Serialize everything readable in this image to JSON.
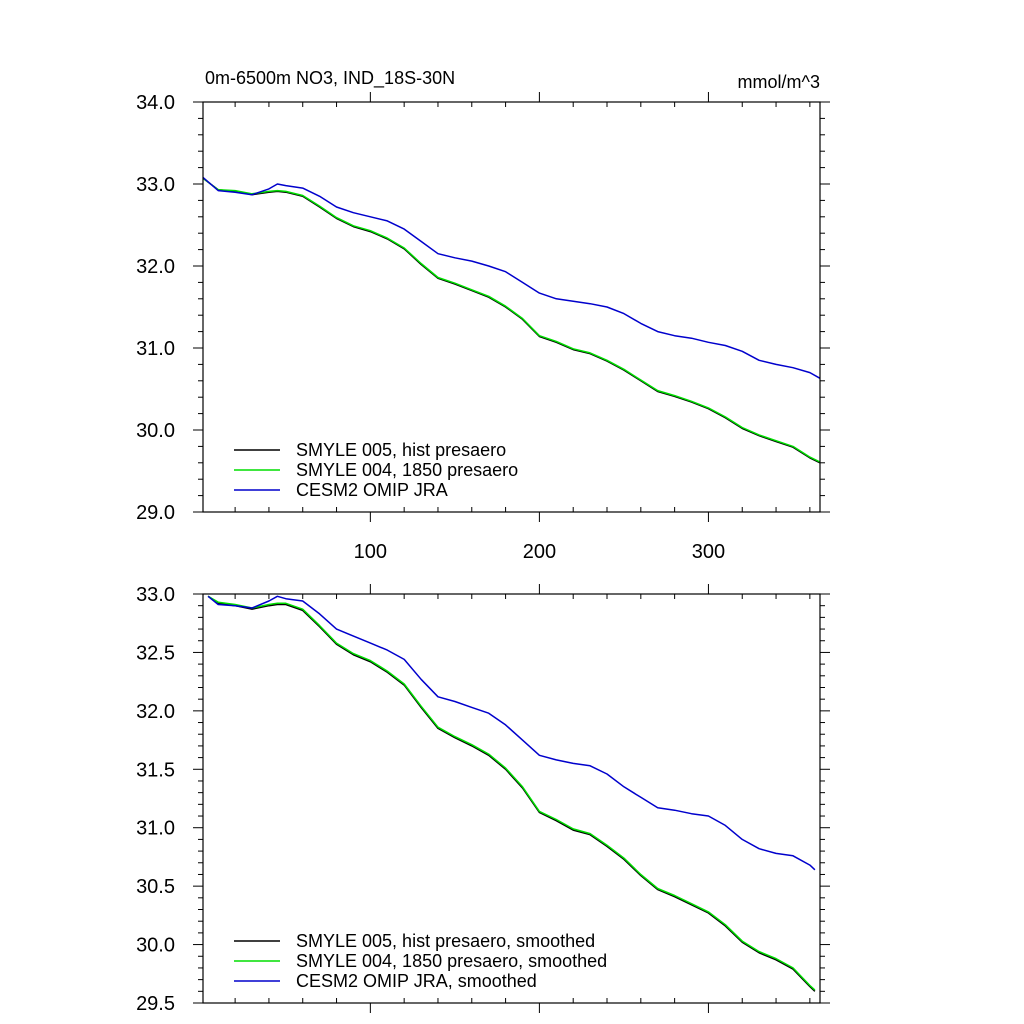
{
  "chart_data": [
    {
      "type": "line",
      "title": "0m-6500m NO3, IND_18S-30N",
      "units": "mmol/m^3",
      "xlim": [
        1,
        366
      ],
      "ylim": [
        29.0,
        34.0
      ],
      "xticks": [
        100,
        200,
        300
      ],
      "yticks": [
        29.0,
        30.0,
        31.0,
        32.0,
        33.0,
        34.0
      ],
      "ytick_labels": [
        "29.0",
        "30.0",
        "31.0",
        "32.0",
        "33.0",
        "34.0"
      ],
      "xtick_labels": [
        "100",
        "200",
        "300"
      ],
      "legend_position": "bottom-left",
      "series": [
        {
          "name": "SMYLE 005, hist presaero",
          "color": "#000000",
          "x": [
            1,
            10,
            20,
            30,
            40,
            45,
            50,
            60,
            70,
            80,
            90,
            100,
            110,
            120,
            130,
            140,
            150,
            160,
            170,
            180,
            190,
            200,
            210,
            220,
            230,
            240,
            250,
            260,
            270,
            280,
            290,
            300,
            310,
            320,
            330,
            340,
            350,
            360,
            366
          ],
          "y": [
            33.07,
            32.93,
            32.91,
            32.87,
            32.9,
            32.91,
            32.9,
            32.85,
            32.72,
            32.58,
            32.48,
            32.42,
            32.33,
            32.21,
            32.02,
            31.85,
            31.78,
            31.7,
            31.62,
            31.5,
            31.35,
            31.14,
            31.07,
            30.98,
            30.93,
            30.84,
            30.73,
            30.6,
            30.47,
            30.41,
            30.34,
            30.26,
            30.15,
            30.02,
            29.93,
            29.86,
            29.79,
            29.66,
            29.6
          ]
        },
        {
          "name": "SMYLE 004, 1850 presaero",
          "color": "#00dd00",
          "x": [
            1,
            10,
            20,
            30,
            40,
            45,
            50,
            60,
            70,
            80,
            90,
            100,
            110,
            120,
            130,
            140,
            150,
            160,
            170,
            180,
            190,
            200,
            210,
            220,
            230,
            240,
            250,
            260,
            270,
            280,
            290,
            300,
            310,
            320,
            330,
            340,
            350,
            360,
            366
          ],
          "y": [
            33.07,
            32.93,
            32.92,
            32.88,
            32.91,
            32.92,
            32.91,
            32.86,
            32.73,
            32.59,
            32.49,
            32.43,
            32.34,
            32.22,
            32.03,
            31.86,
            31.79,
            31.71,
            31.63,
            31.51,
            31.36,
            31.15,
            31.08,
            30.99,
            30.94,
            30.85,
            30.74,
            30.61,
            30.48,
            30.42,
            30.35,
            30.27,
            30.16,
            30.03,
            29.94,
            29.87,
            29.8,
            29.67,
            29.61
          ]
        },
        {
          "name": "CESM2 OMIP JRA",
          "color": "#0000cc",
          "x": [
            1,
            10,
            20,
            30,
            40,
            45,
            50,
            60,
            70,
            80,
            90,
            100,
            110,
            120,
            130,
            140,
            150,
            160,
            170,
            180,
            190,
            200,
            210,
            220,
            230,
            240,
            250,
            260,
            270,
            280,
            290,
            300,
            310,
            320,
            330,
            340,
            350,
            360,
            366
          ],
          "y": [
            33.08,
            32.92,
            32.9,
            32.87,
            32.94,
            33.0,
            32.98,
            32.95,
            32.85,
            32.72,
            32.65,
            32.6,
            32.55,
            32.45,
            32.3,
            32.15,
            32.1,
            32.06,
            32.0,
            31.93,
            31.8,
            31.67,
            31.6,
            31.57,
            31.54,
            31.5,
            31.42,
            31.3,
            31.2,
            31.15,
            31.12,
            31.07,
            31.03,
            30.96,
            30.85,
            30.8,
            30.76,
            30.7,
            30.63
          ]
        }
      ]
    },
    {
      "type": "line",
      "title": "",
      "xlim": [
        1,
        366
      ],
      "ylim": [
        29.5,
        33.0
      ],
      "xticks": [
        100,
        200,
        300
      ],
      "yticks": [
        29.5,
        30.0,
        30.5,
        31.0,
        31.5,
        32.0,
        32.5,
        33.0
      ],
      "ytick_labels": [
        "29.5",
        "30.0",
        "30.5",
        "31.0",
        "31.5",
        "32.0",
        "32.5",
        "33.0"
      ],
      "legend_position": "bottom-left",
      "series": [
        {
          "name": "SMYLE 005, hist presaero, smoothed",
          "color": "#000000",
          "x": [
            4,
            10,
            20,
            30,
            40,
            45,
            50,
            60,
            70,
            80,
            90,
            100,
            110,
            120,
            130,
            140,
            150,
            160,
            170,
            180,
            190,
            200,
            210,
            220,
            230,
            240,
            250,
            260,
            270,
            280,
            290,
            300,
            310,
            320,
            330,
            340,
            350,
            360,
            363
          ],
          "y": [
            32.98,
            32.92,
            32.9,
            32.87,
            32.9,
            32.91,
            32.91,
            32.86,
            32.72,
            32.57,
            32.48,
            32.42,
            32.33,
            32.22,
            32.03,
            31.85,
            31.77,
            31.7,
            31.62,
            31.5,
            31.34,
            31.13,
            31.06,
            30.98,
            30.94,
            30.84,
            30.73,
            30.59,
            30.47,
            30.41,
            30.34,
            30.27,
            30.16,
            30.02,
            29.93,
            29.87,
            29.79,
            29.64,
            29.6
          ]
        },
        {
          "name": "SMYLE 004, 1850 presaero, smoothed",
          "color": "#00dd00",
          "x": [
            4,
            10,
            20,
            30,
            40,
            45,
            50,
            60,
            70,
            80,
            90,
            100,
            110,
            120,
            130,
            140,
            150,
            160,
            170,
            180,
            190,
            200,
            210,
            220,
            230,
            240,
            250,
            260,
            270,
            280,
            290,
            300,
            310,
            320,
            330,
            340,
            350,
            360,
            363
          ],
          "y": [
            32.98,
            32.93,
            32.91,
            32.88,
            32.91,
            32.92,
            32.92,
            32.87,
            32.73,
            32.58,
            32.49,
            32.43,
            32.34,
            32.23,
            32.04,
            31.86,
            31.78,
            31.71,
            31.63,
            31.51,
            31.35,
            31.14,
            31.07,
            30.99,
            30.95,
            30.85,
            30.74,
            30.6,
            30.48,
            30.42,
            30.35,
            30.28,
            30.17,
            30.03,
            29.94,
            29.88,
            29.8,
            29.65,
            29.61
          ]
        },
        {
          "name": "CESM2 OMIP JRA, smoothed",
          "color": "#0000cc",
          "x": [
            4,
            10,
            20,
            30,
            40,
            45,
            50,
            60,
            70,
            80,
            90,
            100,
            110,
            120,
            130,
            140,
            150,
            160,
            170,
            180,
            190,
            200,
            210,
            220,
            230,
            240,
            250,
            260,
            270,
            280,
            290,
            300,
            310,
            320,
            330,
            340,
            350,
            360,
            363
          ],
          "y": [
            32.98,
            32.91,
            32.9,
            32.88,
            32.94,
            32.98,
            32.96,
            32.94,
            32.83,
            32.7,
            32.64,
            32.58,
            32.52,
            32.44,
            32.27,
            32.12,
            32.08,
            32.03,
            31.98,
            31.88,
            31.75,
            31.62,
            31.58,
            31.55,
            31.53,
            31.46,
            31.35,
            31.26,
            31.17,
            31.15,
            31.12,
            31.1,
            31.02,
            30.9,
            30.82,
            30.78,
            30.76,
            30.68,
            30.64
          ]
        }
      ]
    }
  ]
}
